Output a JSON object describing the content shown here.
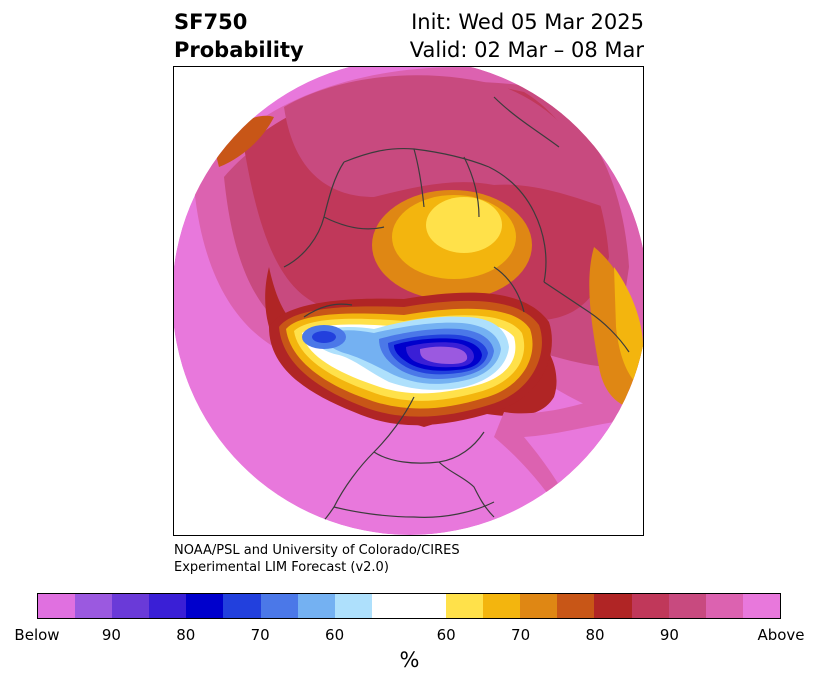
{
  "title": {
    "variable": "SF750",
    "product": "Probability",
    "init": "Init: Wed 05 Mar 2025",
    "valid": "Valid: 02 Mar – 08 Mar"
  },
  "credit": {
    "line1": "NOAA/PSL and University of Colorado/CIRES",
    "line2": "Experimental LIM Forecast (v2.0)"
  },
  "map": {
    "projection": "north-polar-stereographic",
    "field": "SF750 probability",
    "features": [
      "coastlines",
      "country-borders",
      "state-province-borders"
    ]
  },
  "colorbar": {
    "colors": [
      "#e070e0",
      "#9b59e0",
      "#6a3ad8",
      "#3a1fd6",
      "#0000cc",
      "#2240dd",
      "#4b78e8",
      "#74b1f2",
      "#aee0fc",
      "#ffffff",
      "#ffe14a",
      "#f3b50e",
      "#df8714",
      "#c85617",
      "#b02525",
      "#c0385a",
      "#c84a7f",
      "#dc62b0",
      "#e878dc"
    ],
    "tick_labels": [
      "Below",
      "90",
      "80",
      "70",
      "60",
      "60",
      "70",
      "80",
      "90",
      "Above"
    ],
    "unit_label": "%"
  }
}
